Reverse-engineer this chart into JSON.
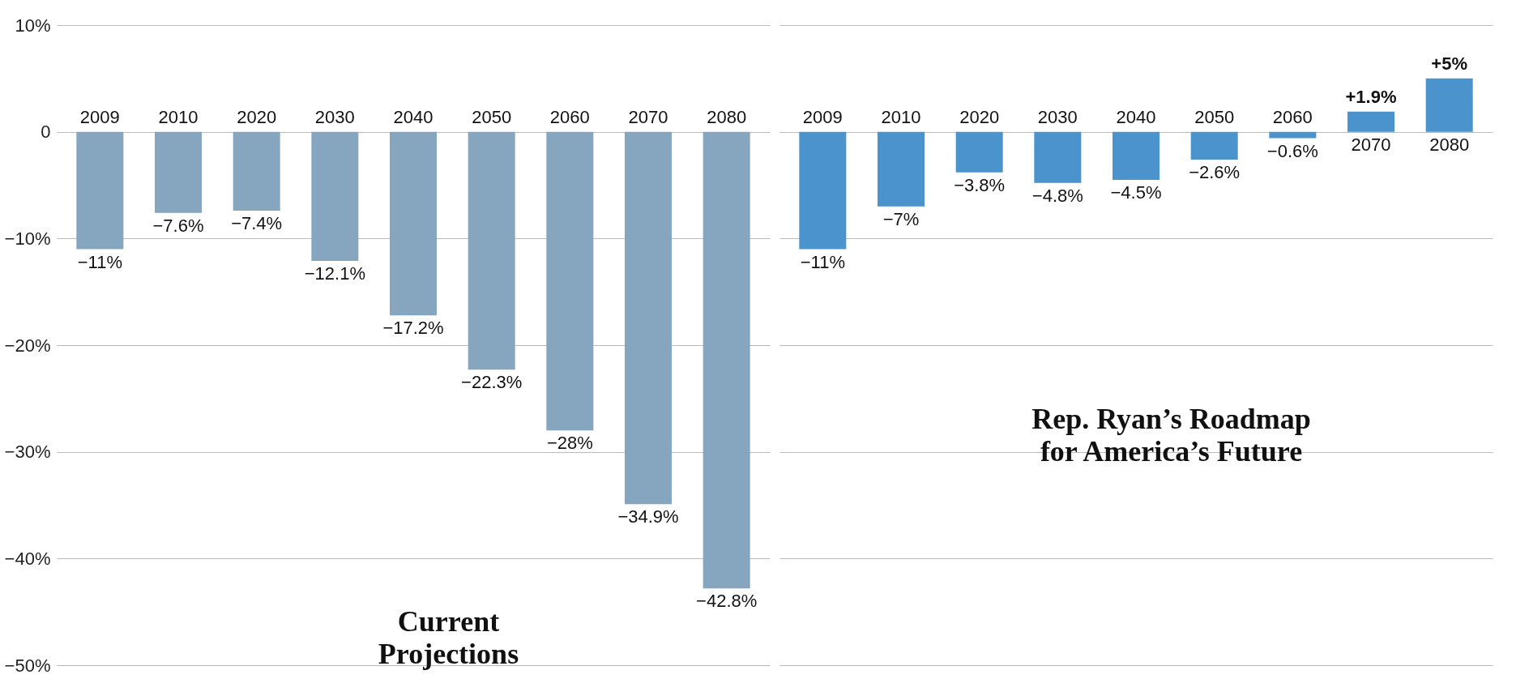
{
  "chart_data": [
    {
      "type": "bar",
      "categories": [
        "2009",
        "2010",
        "2020",
        "2030",
        "2040",
        "2050",
        "2060",
        "2070",
        "2080"
      ],
      "values": [
        -11,
        -7.6,
        -7.4,
        -12.1,
        -17.2,
        -22.3,
        -28,
        -34.9,
        -42.8
      ],
      "value_labels": [
        "−11%",
        "−7.6%",
        "−7.4%",
        "−12.1%",
        "−17.2%",
        "−22.3%",
        "−28%",
        "−34.9%",
        "−42.8%"
      ],
      "color": "#86a5bf",
      "ylim": [
        -50,
        10
      ],
      "yticks": [
        {
          "value": 10,
          "label": "10%"
        },
        0,
        {
          "value": -10,
          "label": "−10%"
        },
        {
          "value": -20,
          "label": "−20%"
        },
        {
          "value": -30,
          "label": "−30%"
        },
        {
          "value": -40,
          "label": "−40%"
        },
        {
          "value": -50,
          "label": "−50%"
        }
      ],
      "grid": "y",
      "annotations": [
        "Current\nProjections"
      ]
    },
    {
      "type": "bar",
      "categories": [
        "2009",
        "2010",
        "2020",
        "2030",
        "2040",
        "2050",
        "2060",
        "2070",
        "2080"
      ],
      "values": [
        -11,
        -7,
        -3.8,
        -4.8,
        -4.5,
        -2.6,
        -0.6,
        1.9,
        5
      ],
      "value_labels": [
        "−11%",
        "−7%",
        "−3.8%",
        "−4.8%",
        "−4.5%",
        "−2.6%",
        "−0.6%",
        "+1.9%",
        "+5%"
      ],
      "color": "#4a93cc",
      "ylim": [
        -50,
        10
      ],
      "yticks": [
        {
          "value": 10,
          "label": null
        },
        {
          "value": 0,
          "label": null
        },
        {
          "value": -10,
          "label": null
        },
        {
          "value": -20,
          "label": null
        },
        {
          "value": -30,
          "label": null
        },
        {
          "value": -40,
          "label": null
        },
        {
          "value": -50,
          "label": null
        }
      ],
      "grid": "y",
      "tick_labels": "x",
      "annotations": [
        "Rep. Ryan’s Roadmap\nfor America’s Future"
      ]
    }
  ]
}
